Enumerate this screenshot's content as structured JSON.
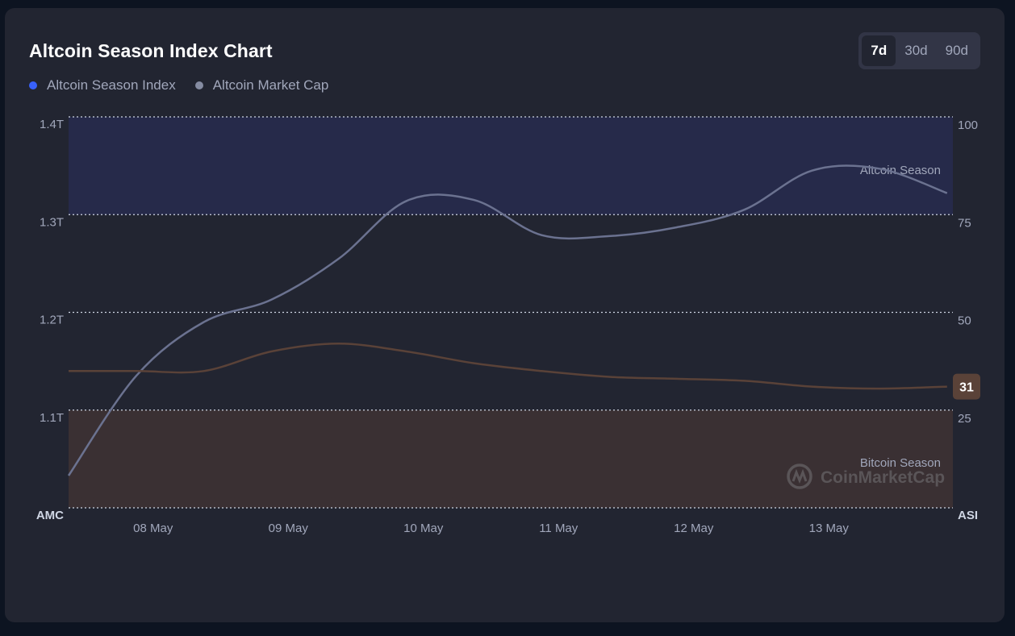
{
  "title": "Altcoin Season Index Chart",
  "legend": [
    {
      "label": "Altcoin Season Index",
      "color": "#3861fb"
    },
    {
      "label": "Altcoin Market Cap",
      "color": "#858ca2"
    }
  ],
  "range_buttons": [
    {
      "label": "7d",
      "active": true
    },
    {
      "label": "30d",
      "active": false
    },
    {
      "label": "90d",
      "active": false
    }
  ],
  "watermark": "CoinMarketCap",
  "chart_data": {
    "type": "line",
    "x": [
      "08 May",
      "09 May",
      "10 May",
      "11 May",
      "12 May",
      "13 May"
    ],
    "left_axis": {
      "name": "AMC",
      "ticks": [
        "1.4T",
        "1.3T",
        "1.2T",
        "1.1T"
      ],
      "range": [
        1.0,
        1.4
      ]
    },
    "right_axis": {
      "name": "ASI",
      "ticks": [
        "100",
        "75",
        "50",
        "25"
      ],
      "range": [
        0,
        100
      ]
    },
    "zones": [
      {
        "label": "Altcoin Season",
        "from": 75,
        "to": 100,
        "color": "#262a4a"
      },
      {
        "label": "Bitcoin Season",
        "from": 0,
        "to": 25,
        "color": "#3a3033"
      }
    ],
    "series": [
      {
        "name": "Altcoin Market Cap",
        "axis": "left",
        "color": "#6b7290",
        "points": [
          [
            0,
            1.033
          ],
          [
            0.5,
            1.135
          ],
          [
            1,
            1.19
          ],
          [
            1.5,
            1.213
          ],
          [
            2,
            1.255
          ],
          [
            2.5,
            1.314
          ],
          [
            3,
            1.315
          ],
          [
            3.5,
            1.279
          ],
          [
            4,
            1.278
          ],
          [
            4.5,
            1.287
          ],
          [
            5,
            1.305
          ],
          [
            5.5,
            1.345
          ],
          [
            6,
            1.347
          ],
          [
            6.5,
            1.322
          ]
        ]
      },
      {
        "name": "Altcoin Season Index",
        "axis": "right",
        "color": "#5a4238",
        "points": [
          [
            0,
            35
          ],
          [
            0.5,
            35
          ],
          [
            1,
            35
          ],
          [
            1.5,
            40
          ],
          [
            2,
            42
          ],
          [
            2.5,
            40
          ],
          [
            3,
            37
          ],
          [
            3.5,
            35
          ],
          [
            4,
            33.5
          ],
          [
            4.5,
            33
          ],
          [
            5,
            32.5
          ],
          [
            5.5,
            31
          ],
          [
            6,
            30.5
          ],
          [
            6.5,
            31
          ]
        ]
      }
    ],
    "current_value_label": "31",
    "grid": true,
    "legend_position": "top-left"
  }
}
